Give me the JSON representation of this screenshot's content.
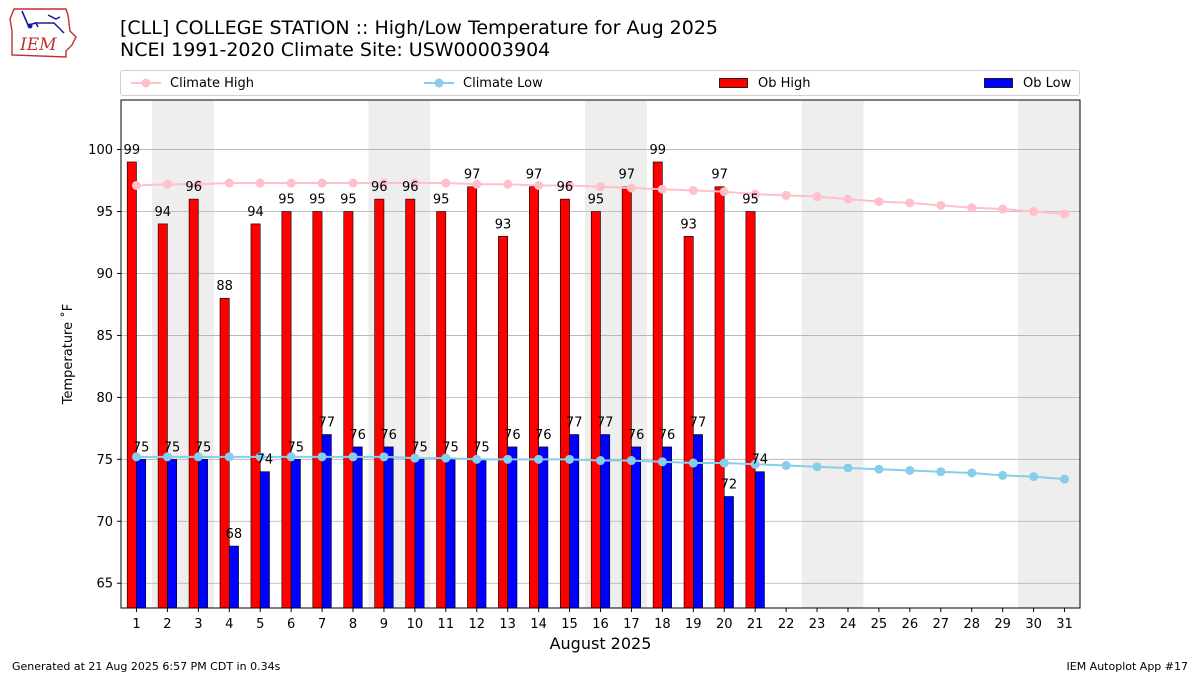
{
  "header": {
    "logo_text": "IEM",
    "title_line1": "[CLL] COLLEGE STATION :: High/Low Temperature for Aug 2025",
    "title_line2": "NCEI 1991-2020 Climate Site: USW00003904"
  },
  "legend": {
    "climate_high": "Climate High",
    "climate_low": "Climate Low",
    "ob_high": "Ob High",
    "ob_low": "Ob Low"
  },
  "colors": {
    "climate_high": "#ffc0cb",
    "climate_low": "#87ceeb",
    "ob_high": "#ff0000",
    "ob_low": "#0000ff",
    "weekend_band": "#eeeeee",
    "grid": "#b0b0b0"
  },
  "footer": {
    "left": "Generated at 21 Aug 2025 6:57 PM CDT in 0.34s",
    "right": "IEM Autoplot App #17"
  },
  "chart_data": {
    "type": "bar",
    "xlabel": "August 2025",
    "ylabel": "Temperature ˚F",
    "xlim": [
      0.5,
      31.5
    ],
    "ylim": [
      63,
      104
    ],
    "yticks": [
      65,
      70,
      75,
      80,
      85,
      90,
      95,
      100
    ],
    "grid": "horizontal",
    "legend_position": "top",
    "days": [
      1,
      2,
      3,
      4,
      5,
      6,
      7,
      8,
      9,
      10,
      11,
      12,
      13,
      14,
      15,
      16,
      17,
      18,
      19,
      20,
      21,
      22,
      23,
      24,
      25,
      26,
      27,
      28,
      29,
      30,
      31
    ],
    "shaded_days": [
      2,
      3,
      9,
      10,
      16,
      17,
      23,
      24,
      30,
      31
    ],
    "series": [
      {
        "name": "Ob High",
        "kind": "bar",
        "values": [
          99,
          94,
          96,
          88,
          94,
          95,
          95,
          95,
          96,
          96,
          95,
          97,
          93,
          97,
          96,
          95,
          97,
          99,
          93,
          97,
          95
        ]
      },
      {
        "name": "Ob Low",
        "kind": "bar",
        "values": [
          75,
          75,
          75,
          68,
          74,
          75,
          77,
          76,
          76,
          75,
          75,
          75,
          76,
          76,
          77,
          77,
          76,
          76,
          77,
          72,
          74
        ]
      },
      {
        "name": "Climate High",
        "kind": "line",
        "values": [
          97.1,
          97.2,
          97.2,
          97.3,
          97.3,
          97.3,
          97.3,
          97.3,
          97.3,
          97.3,
          97.3,
          97.2,
          97.2,
          97.1,
          97.1,
          97.0,
          96.9,
          96.8,
          96.7,
          96.6,
          96.4,
          96.3,
          96.2,
          96.0,
          95.8,
          95.7,
          95.5,
          95.3,
          95.2,
          95.0,
          94.8
        ]
      },
      {
        "name": "Climate Low",
        "kind": "line",
        "values": [
          75.2,
          75.2,
          75.2,
          75.2,
          75.2,
          75.2,
          75.2,
          75.2,
          75.2,
          75.1,
          75.1,
          75.0,
          75.0,
          75.0,
          75.0,
          74.9,
          74.9,
          74.8,
          74.7,
          74.7,
          74.6,
          74.5,
          74.4,
          74.3,
          74.2,
          74.1,
          74.0,
          73.9,
          73.7,
          73.6,
          73.4
        ]
      }
    ]
  }
}
